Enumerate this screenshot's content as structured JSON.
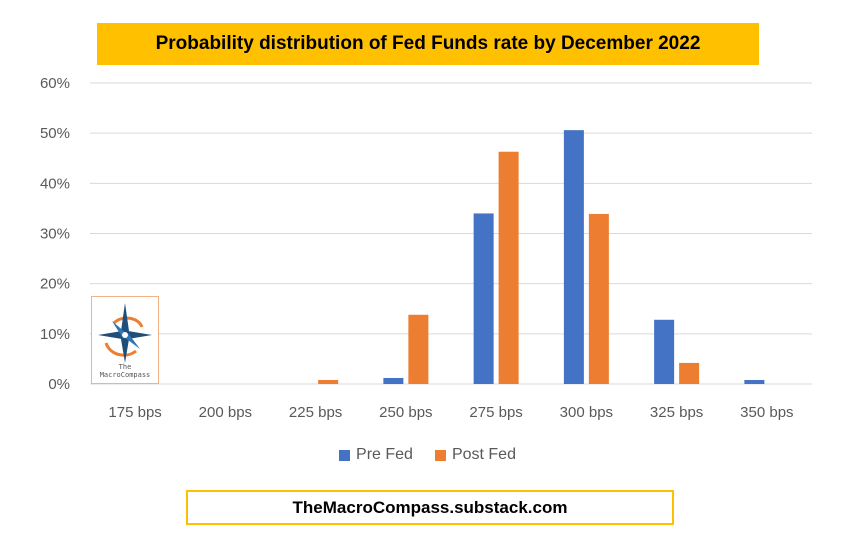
{
  "chart_data": {
    "type": "bar",
    "title": "Probability distribution of Fed Funds rate by December 2022",
    "categories": [
      "175 bps",
      "200 bps",
      "225 bps",
      "250 bps",
      "275 bps",
      "300 bps",
      "325 bps",
      "350 bps"
    ],
    "series": [
      {
        "name": "Pre Fed",
        "color": "#4472c4",
        "values": [
          0,
          0,
          0,
          1.2,
          34.0,
          50.6,
          12.8,
          0.8
        ]
      },
      {
        "name": "Post Fed",
        "color": "#ed7d31",
        "values": [
          0,
          0,
          0.8,
          13.8,
          46.3,
          33.9,
          4.2,
          0
        ]
      }
    ],
    "ylim": [
      0,
      60
    ],
    "yticks": [
      "0%",
      "10%",
      "20%",
      "30%",
      "40%",
      "50%",
      "60%"
    ],
    "grid": true,
    "legend_position": "bottom"
  },
  "footer": "TheMacroCompass.substack.com",
  "logo": {
    "line1": "The",
    "line2": "MacroCompass"
  }
}
